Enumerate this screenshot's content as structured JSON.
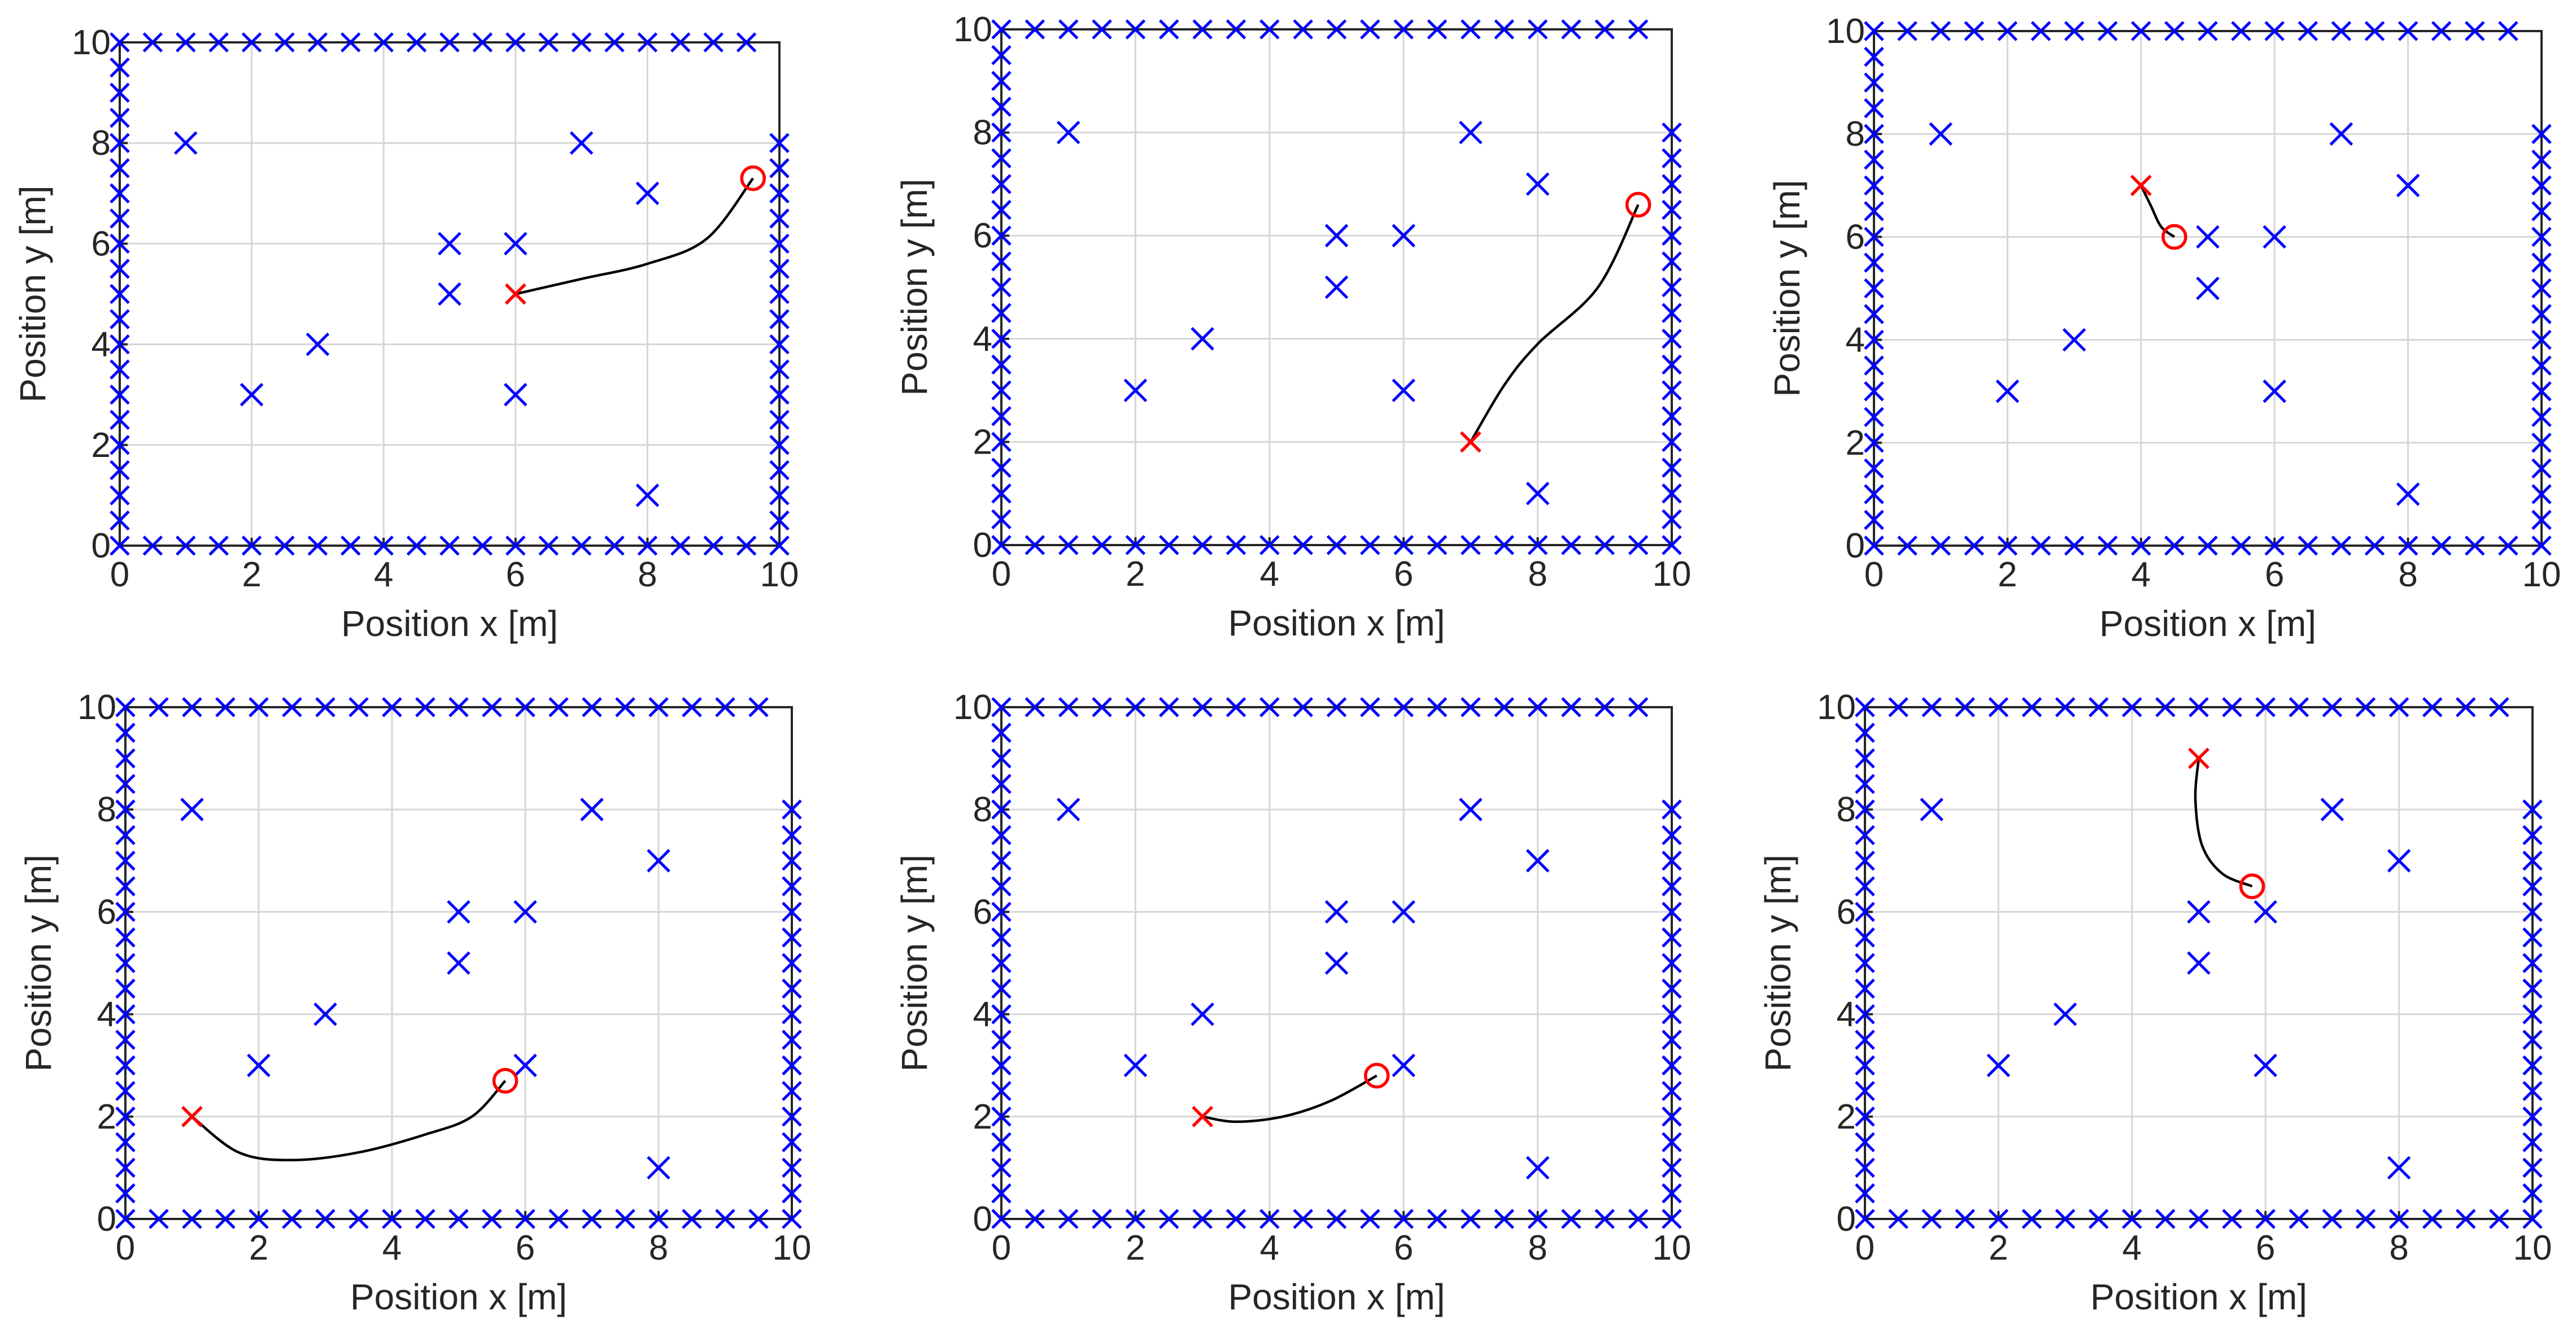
{
  "chart_data": [
    {
      "type": "scatter",
      "xlabel": "Position x [m]",
      "ylabel": "Position y [m]",
      "xlim": [
        0,
        10
      ],
      "ylim": [
        0,
        10
      ],
      "xticks": [
        0,
        2,
        4,
        6,
        8,
        10
      ],
      "yticks": [
        0,
        2,
        4,
        6,
        8,
        10
      ],
      "grid": true,
      "obstacles": [
        [
          1,
          8
        ],
        [
          2,
          3
        ],
        [
          3,
          4
        ],
        [
          5,
          6
        ],
        [
          5,
          5
        ],
        [
          6,
          6
        ],
        [
          6,
          3
        ],
        [
          7,
          8
        ],
        [
          8,
          7
        ],
        [
          8,
          1
        ]
      ],
      "start": [
        6,
        5
      ],
      "goal": [
        9.6,
        7.3
      ],
      "trajectory": [
        [
          6,
          5
        ],
        [
          7,
          5.3
        ],
        [
          8,
          5.6
        ],
        [
          8.9,
          6.1
        ],
        [
          9.6,
          7.3
        ]
      ]
    },
    {
      "type": "scatter",
      "xlabel": "Position x [m]",
      "ylabel": "Position y [m]",
      "xlim": [
        0,
        10
      ],
      "ylim": [
        0,
        10
      ],
      "xticks": [
        0,
        2,
        4,
        6,
        8,
        10
      ],
      "yticks": [
        0,
        2,
        4,
        6,
        8,
        10
      ],
      "grid": true,
      "obstacles": [
        [
          1,
          8
        ],
        [
          2,
          3
        ],
        [
          3,
          4
        ],
        [
          5,
          6
        ],
        [
          5,
          5
        ],
        [
          6,
          6
        ],
        [
          6,
          3
        ],
        [
          7,
          8
        ],
        [
          8,
          7
        ],
        [
          8,
          1
        ]
      ],
      "start": [
        7,
        2
      ],
      "goal": [
        9.5,
        6.6
      ],
      "trajectory": [
        [
          7,
          2
        ],
        [
          7.5,
          3.1
        ],
        [
          8,
          3.9
        ],
        [
          8.9,
          5.0
        ],
        [
          9.5,
          6.6
        ]
      ]
    },
    {
      "type": "scatter",
      "xlabel": "Position x [m]",
      "ylabel": "Position y [m]",
      "xlim": [
        0,
        10
      ],
      "ylim": [
        0,
        10
      ],
      "xticks": [
        0,
        2,
        4,
        6,
        8,
        10
      ],
      "yticks": [
        0,
        2,
        4,
        6,
        8,
        10
      ],
      "grid": true,
      "obstacles": [
        [
          1,
          8
        ],
        [
          2,
          3
        ],
        [
          3,
          4
        ],
        [
          5,
          6
        ],
        [
          5,
          5
        ],
        [
          6,
          6
        ],
        [
          6,
          3
        ],
        [
          7,
          8
        ],
        [
          8,
          7
        ],
        [
          8,
          1
        ]
      ],
      "start": [
        4,
        7
      ],
      "goal": [
        4.5,
        6
      ],
      "trajectory": [
        [
          4,
          7
        ],
        [
          4.15,
          6.6
        ],
        [
          4.3,
          6.2
        ],
        [
          4.5,
          6
        ]
      ]
    },
    {
      "type": "scatter",
      "xlabel": "Position x [m]",
      "ylabel": "Position y [m]",
      "xlim": [
        0,
        10
      ],
      "ylim": [
        0,
        10
      ],
      "xticks": [
        0,
        2,
        4,
        6,
        8,
        10
      ],
      "yticks": [
        0,
        2,
        4,
        6,
        8,
        10
      ],
      "grid": true,
      "obstacles": [
        [
          1,
          8
        ],
        [
          2,
          3
        ],
        [
          3,
          4
        ],
        [
          5,
          6
        ],
        [
          5,
          5
        ],
        [
          6,
          6
        ],
        [
          6,
          3
        ],
        [
          7,
          8
        ],
        [
          8,
          7
        ],
        [
          8,
          1
        ]
      ],
      "start": [
        1,
        2
      ],
      "goal": [
        5.7,
        2.7
      ],
      "trajectory": [
        [
          1,
          2
        ],
        [
          1.7,
          1.3
        ],
        [
          2.5,
          1.15
        ],
        [
          3.5,
          1.3
        ],
        [
          4.5,
          1.65
        ],
        [
          5.2,
          2.0
        ],
        [
          5.7,
          2.7
        ]
      ]
    },
    {
      "type": "scatter",
      "xlabel": "Position x [m]",
      "ylabel": "Position y [m]",
      "xlim": [
        0,
        10
      ],
      "ylim": [
        0,
        10
      ],
      "xticks": [
        0,
        2,
        4,
        6,
        8,
        10
      ],
      "yticks": [
        0,
        2,
        4,
        6,
        8,
        10
      ],
      "grid": true,
      "obstacles": [
        [
          1,
          8
        ],
        [
          2,
          3
        ],
        [
          3,
          4
        ],
        [
          5,
          6
        ],
        [
          5,
          5
        ],
        [
          6,
          6
        ],
        [
          6,
          3
        ],
        [
          7,
          8
        ],
        [
          8,
          7
        ],
        [
          8,
          1
        ]
      ],
      "start": [
        3,
        2
      ],
      "goal": [
        5.6,
        2.8
      ],
      "trajectory": [
        [
          3,
          2
        ],
        [
          3.5,
          1.9
        ],
        [
          4.2,
          2.0
        ],
        [
          4.9,
          2.3
        ],
        [
          5.6,
          2.8
        ]
      ]
    },
    {
      "type": "scatter",
      "xlabel": "Position x [m]",
      "ylabel": "Position y [m]",
      "xlim": [
        0,
        10
      ],
      "ylim": [
        0,
        10
      ],
      "xticks": [
        0,
        2,
        4,
        6,
        8,
        10
      ],
      "yticks": [
        0,
        2,
        4,
        6,
        8,
        10
      ],
      "grid": true,
      "obstacles": [
        [
          1,
          8
        ],
        [
          2,
          3
        ],
        [
          3,
          4
        ],
        [
          5,
          6
        ],
        [
          5,
          5
        ],
        [
          6,
          6
        ],
        [
          6,
          3
        ],
        [
          7,
          8
        ],
        [
          8,
          7
        ],
        [
          8,
          1
        ]
      ],
      "start": [
        5,
        9
      ],
      "goal": [
        5.8,
        6.5
      ],
      "trajectory": [
        [
          5,
          9
        ],
        [
          4.95,
          8.2
        ],
        [
          5.05,
          7.3
        ],
        [
          5.35,
          6.75
        ],
        [
          5.8,
          6.5
        ]
      ]
    }
  ],
  "colors": {
    "obstacle": "#0000ff",
    "start": "#ff0000",
    "goal": "#ff0000",
    "trajectory": "#000000",
    "grid": "#d6d6d6",
    "axis": "#262626"
  }
}
